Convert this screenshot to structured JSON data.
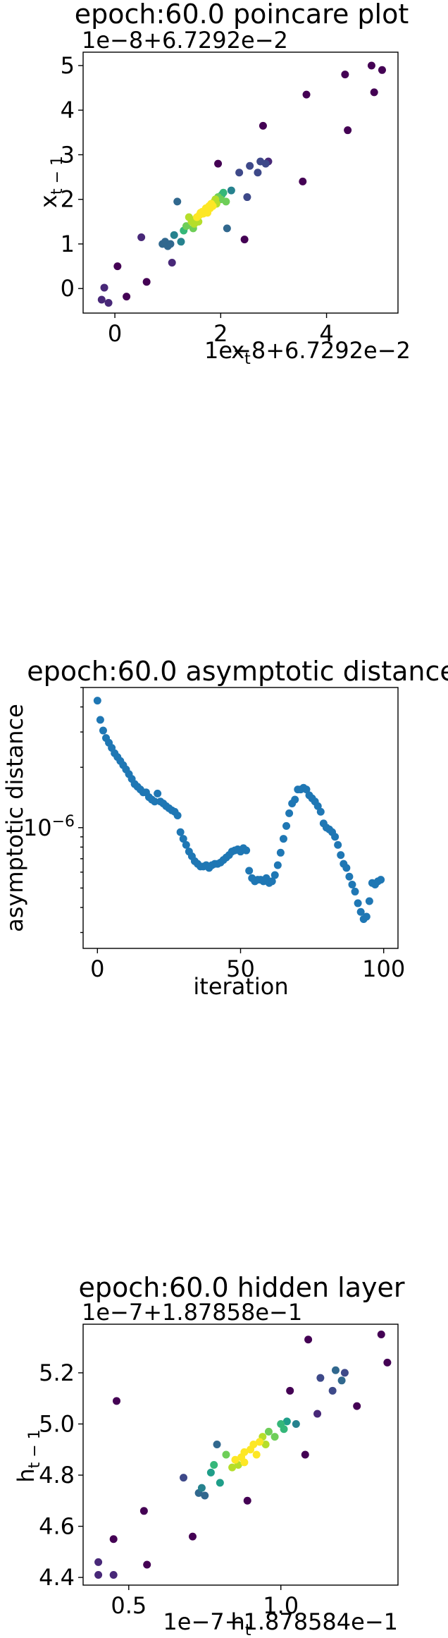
{
  "chart_data": [
    {
      "type": "scatter",
      "title": "epoch:60.0 poincare plot",
      "xlabel": "x_t",
      "ylabel": "x_{t-1}",
      "x_offset_text": "1e−8+6.7292e−2",
      "y_offset_text": "1e−8+6.7292e−2",
      "xlim": [
        -0.6,
        5.35
      ],
      "ylim": [
        -0.55,
        5.3
      ],
      "x_ticks": [
        0,
        2,
        4
      ],
      "x_tick_labels": [
        "0",
        "2",
        "4"
      ],
      "y_ticks": [
        0,
        1,
        2,
        3,
        4,
        5
      ],
      "y_tick_labels": [
        "0",
        "1",
        "2",
        "3",
        "4",
        "5"
      ],
      "colormap": "viridis",
      "color_encoding": "point density",
      "points": [
        [
          -0.25,
          -0.25
        ],
        [
          -0.2,
          0.02
        ],
        [
          -0.12,
          -0.32
        ],
        [
          0.05,
          0.5
        ],
        [
          0.22,
          -0.18
        ],
        [
          0.5,
          1.15
        ],
        [
          0.6,
          0.15
        ],
        [
          0.9,
          1.0
        ],
        [
          0.95,
          1.05
        ],
        [
          1.0,
          0.95
        ],
        [
          1.05,
          1.0
        ],
        [
          1.08,
          0.58
        ],
        [
          1.12,
          1.2
        ],
        [
          1.18,
          1.95
        ],
        [
          1.25,
          1.05
        ],
        [
          1.3,
          1.3
        ],
        [
          1.35,
          1.4
        ],
        [
          1.4,
          1.6
        ],
        [
          1.45,
          1.5
        ],
        [
          1.48,
          1.35
        ],
        [
          1.5,
          1.45
        ],
        [
          1.52,
          1.55
        ],
        [
          1.55,
          1.6
        ],
        [
          1.58,
          1.5
        ],
        [
          1.6,
          1.65
        ],
        [
          1.62,
          1.7
        ],
        [
          1.65,
          1.72
        ],
        [
          1.67,
          1.68
        ],
        [
          1.7,
          1.75
        ],
        [
          1.72,
          1.8
        ],
        [
          1.75,
          1.7
        ],
        [
          1.78,
          1.85
        ],
        [
          1.8,
          1.8
        ],
        [
          1.82,
          1.9
        ],
        [
          1.85,
          1.85
        ],
        [
          1.88,
          1.95
        ],
        [
          1.9,
          2.0
        ],
        [
          1.92,
          1.9
        ],
        [
          1.95,
          2.05
        ],
        [
          2.0,
          2.0
        ],
        [
          2.02,
          2.1
        ],
        [
          2.05,
          2.15
        ],
        [
          2.1,
          1.95
        ],
        [
          2.12,
          1.35
        ],
        [
          2.2,
          2.2
        ],
        [
          1.95,
          2.8
        ],
        [
          2.35,
          2.6
        ],
        [
          2.45,
          1.1
        ],
        [
          2.5,
          2.05
        ],
        [
          2.55,
          2.75
        ],
        [
          2.7,
          2.6
        ],
        [
          2.75,
          2.85
        ],
        [
          2.8,
          3.65
        ],
        [
          2.85,
          2.8
        ],
        [
          2.9,
          2.85
        ],
        [
          3.55,
          2.4
        ],
        [
          3.62,
          4.35
        ],
        [
          4.35,
          4.8
        ],
        [
          4.4,
          3.55
        ],
        [
          4.85,
          5.0
        ],
        [
          4.9,
          4.4
        ],
        [
          5.05,
          4.9
        ]
      ]
    },
    {
      "type": "scatter",
      "title": "epoch:60.0 asymptotic distance",
      "xlabel": "iteration",
      "ylabel": "asymptotic distance",
      "y_scale": "log",
      "xlim": [
        -5,
        105
      ],
      "ylim": [
        2.5e-07,
        5e-06
      ],
      "x_ticks": [
        0,
        50,
        100
      ],
      "x_tick_labels": [
        "0",
        "50",
        "100"
      ],
      "y_ticks": [
        1e-06
      ],
      "y_tick_base": "10",
      "y_tick_exp": "−6",
      "color": "#1f77b4",
      "x": [
        0,
        1,
        2,
        3,
        4,
        5,
        6,
        7,
        8,
        9,
        10,
        11,
        12,
        13,
        14,
        15,
        16,
        17,
        18,
        19,
        20,
        21,
        22,
        23,
        24,
        25,
        26,
        27,
        28,
        29,
        30,
        31,
        32,
        33,
        34,
        35,
        36,
        37,
        38,
        39,
        40,
        41,
        42,
        43,
        44,
        45,
        46,
        47,
        48,
        49,
        50,
        51,
        52,
        53,
        54,
        55,
        56,
        57,
        58,
        59,
        60,
        61,
        62,
        63,
        64,
        65,
        66,
        67,
        68,
        69,
        70,
        71,
        72,
        73,
        74,
        75,
        76,
        77,
        78,
        79,
        80,
        81,
        82,
        83,
        84,
        85,
        86,
        87,
        88,
        89,
        90,
        91,
        92,
        93,
        94,
        95,
        96,
        97,
        98,
        99
      ],
      "y": [
        4.3e-06,
        3.45e-06,
        3.05e-06,
        2.8e-06,
        2.65e-06,
        2.5e-06,
        2.35e-06,
        2.25e-06,
        2.15e-06,
        2.05e-06,
        1.95e-06,
        1.85e-06,
        1.75e-06,
        1.65e-06,
        1.6e-06,
        1.55e-06,
        1.5e-06,
        1.5e-06,
        1.42e-06,
        1.38e-06,
        1.35e-06,
        1.48e-06,
        1.35e-06,
        1.32e-06,
        1.28e-06,
        1.25e-06,
        1.22e-06,
        1.2e-06,
        1.15e-06,
        9.5e-07,
        8.8e-07,
        8.2e-07,
        7.6e-07,
        7.2e-07,
        6.8e-07,
        6.6e-07,
        6.4e-07,
        6.4e-07,
        6.5e-07,
        6.3e-07,
        6.5e-07,
        6.6e-07,
        6.6e-07,
        6.7e-07,
        6.9e-07,
        7.1e-07,
        7.3e-07,
        7.6e-07,
        7.7e-07,
        7.8e-07,
        7.6e-07,
        7.9e-07,
        7.7e-07,
        6.1e-07,
        5.6e-07,
        5.4e-07,
        5.5e-07,
        5.5e-07,
        5.4e-07,
        5.6e-07,
        5.3e-07,
        5.4e-07,
        5.8e-07,
        6.5e-07,
        7.5e-07,
        8.8e-07,
        1.02e-06,
        1.18e-06,
        1.32e-06,
        1.38e-06,
        1.55e-06,
        1.55e-06,
        1.58e-06,
        1.55e-06,
        1.45e-06,
        1.4e-06,
        1.35e-06,
        1.28e-06,
        1.2e-06,
        1.05e-06,
        1e-06,
        9.8e-07,
        9.5e-07,
        9e-07,
        8.2e-07,
        7.3e-07,
        6.6e-07,
        6.3e-07,
        5.7e-07,
        5.2e-07,
        4.8e-07,
        4.2e-07,
        3.8e-07,
        3.5e-07,
        3.6e-07,
        4.3e-07,
        5.3e-07,
        5.2e-07,
        5.4e-07,
        5.5e-07
      ]
    },
    {
      "type": "scatter",
      "title": "epoch:60.0 hidden layer",
      "xlabel": "h_t",
      "ylabel": "h_{t-1}",
      "x_offset_text": "1e−7+1.878584e−1",
      "y_offset_text": "1e−7+1.87858e−1",
      "xlim": [
        0.35,
        1.385
      ],
      "ylim": [
        4.37,
        5.39
      ],
      "x_ticks": [
        0.5,
        1.0
      ],
      "x_tick_labels": [
        "0.5",
        "1.0"
      ],
      "y_ticks": [
        4.4,
        4.6,
        4.8,
        5.0,
        5.2
      ],
      "y_tick_labels": [
        "4.4",
        "4.6",
        "4.8",
        "5.0",
        "5.2"
      ],
      "colormap": "viridis",
      "color_encoding": "point density",
      "points": [
        [
          0.4,
          4.41
        ],
        [
          0.4,
          4.46
        ],
        [
          0.45,
          4.41
        ],
        [
          0.45,
          4.55
        ],
        [
          0.46,
          5.09
        ],
        [
          0.55,
          4.66
        ],
        [
          0.56,
          4.45
        ],
        [
          0.68,
          4.79
        ],
        [
          0.71,
          4.56
        ],
        [
          0.73,
          4.73
        ],
        [
          0.74,
          4.75
        ],
        [
          0.75,
          4.72
        ],
        [
          0.77,
          4.81
        ],
        [
          0.78,
          4.84
        ],
        [
          0.79,
          4.92
        ],
        [
          0.8,
          4.77
        ],
        [
          0.82,
          4.88
        ],
        [
          0.84,
          4.83
        ],
        [
          0.85,
          4.86
        ],
        [
          0.86,
          4.84
        ],
        [
          0.87,
          4.87
        ],
        [
          0.88,
          4.85
        ],
        [
          0.88,
          4.89
        ],
        [
          0.89,
          4.7
        ],
        [
          0.9,
          4.9
        ],
        [
          0.91,
          4.92
        ],
        [
          0.92,
          4.88
        ],
        [
          0.93,
          4.93
        ],
        [
          0.94,
          4.95
        ],
        [
          0.95,
          4.92
        ],
        [
          0.96,
          4.97
        ],
        [
          0.98,
          4.95
        ],
        [
          1.0,
          5.0
        ],
        [
          1.01,
          4.98
        ],
        [
          1.02,
          5.01
        ],
        [
          1.03,
          5.13
        ],
        [
          1.05,
          5.0
        ],
        [
          1.08,
          4.88
        ],
        [
          1.09,
          5.33
        ],
        [
          1.12,
          5.04
        ],
        [
          1.13,
          5.18
        ],
        [
          1.17,
          5.13
        ],
        [
          1.18,
          5.21
        ],
        [
          1.2,
          5.17
        ],
        [
          1.21,
          5.2
        ],
        [
          1.25,
          5.07
        ],
        [
          1.33,
          5.35
        ],
        [
          1.35,
          5.24
        ]
      ]
    }
  ]
}
